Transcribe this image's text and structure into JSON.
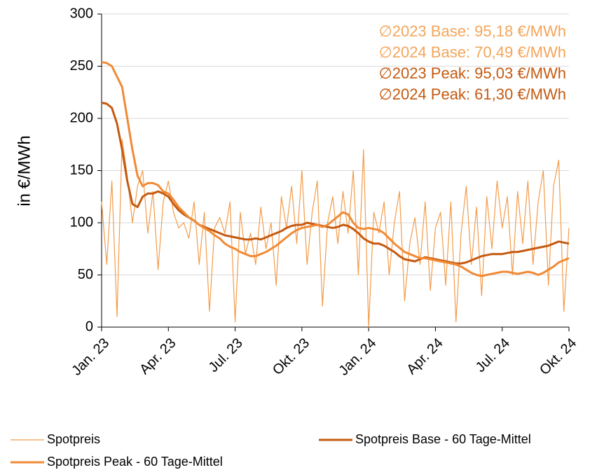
{
  "chart_data": {
    "type": "line",
    "ylabel": "in €/MWh",
    "categories": [
      "Jan. 23",
      null,
      null,
      null,
      null,
      null,
      null,
      null,
      null,
      null,
      null,
      null,
      null,
      "Apr. 23",
      null,
      null,
      null,
      null,
      null,
      null,
      null,
      null,
      null,
      null,
      null,
      null,
      "Jul. 23",
      null,
      null,
      null,
      null,
      null,
      null,
      null,
      null,
      null,
      null,
      null,
      null,
      "Okt. 23",
      null,
      null,
      null,
      null,
      null,
      null,
      null,
      null,
      null,
      null,
      null,
      null,
      "Jan. 24",
      null,
      null,
      null,
      null,
      null,
      null,
      null,
      null,
      null,
      null,
      null,
      null,
      "Apr. 24",
      null,
      null,
      null,
      null,
      null,
      null,
      null,
      null,
      null,
      null,
      null,
      null,
      "Jul. 24",
      null,
      null,
      null,
      null,
      null,
      null,
      null,
      null,
      null,
      null,
      null,
      null,
      "Okt. 24"
    ],
    "series": [
      {
        "name": "Spotpreis",
        "color": "#f39c4a",
        "width": 1.2,
        "values": [
          120,
          60,
          140,
          10,
          180,
          145,
          100,
          135,
          150,
          90,
          130,
          55,
          120,
          140,
          110,
          95,
          100,
          85,
          120,
          60,
          110,
          15,
          95,
          105,
          90,
          120,
          5,
          110,
          70,
          90,
          60,
          115,
          75,
          100,
          40,
          125,
          95,
          135,
          80,
          150,
          60,
          110,
          140,
          20,
          100,
          125,
          80,
          130,
          90,
          150,
          50,
          170,
          0,
          110,
          90,
          120,
          50,
          100,
          130,
          25,
          80,
          105,
          60,
          120,
          35,
          95,
          110,
          40,
          120,
          5,
          90,
          135,
          60,
          115,
          30,
          125,
          75,
          140,
          95,
          125,
          50,
          130,
          80,
          140,
          60,
          120,
          150,
          40,
          135,
          160,
          15,
          95
        ]
      },
      {
        "name": "Spotpreis Base - 60 Tage-Mittel",
        "color": "#c55a11",
        "width": 3,
        "values": [
          215,
          214,
          210,
          195,
          170,
          140,
          118,
          115,
          125,
          128,
          128,
          130,
          128,
          125,
          118,
          112,
          108,
          105,
          102,
          98,
          96,
          94,
          92,
          90,
          88,
          87,
          86,
          85,
          84,
          84,
          85,
          84,
          86,
          88,
          90,
          92,
          95,
          97,
          98,
          98,
          100,
          99,
          98,
          97,
          96,
          95,
          96,
          98,
          97,
          94,
          90,
          85,
          82,
          80,
          80,
          78,
          75,
          72,
          68,
          65,
          64,
          63,
          65,
          67,
          66,
          65,
          64,
          63,
          62,
          61,
          61,
          62,
          64,
          66,
          68,
          69,
          70,
          70,
          70,
          71,
          72,
          72,
          73,
          74,
          75,
          76,
          77,
          78,
          80,
          82,
          81,
          80
        ]
      },
      {
        "name": "Spotpreis Peak - 60 Tage-Mittel",
        "color": "#f08a35",
        "width": 3,
        "values": [
          254,
          253,
          250,
          240,
          230,
          200,
          170,
          145,
          135,
          138,
          138,
          136,
          130,
          128,
          122,
          115,
          110,
          105,
          102,
          98,
          95,
          92,
          88,
          85,
          80,
          77,
          75,
          72,
          70,
          68,
          68,
          70,
          72,
          75,
          78,
          82,
          86,
          90,
          93,
          95,
          96,
          97,
          98,
          96,
          98,
          102,
          106,
          110,
          108,
          100,
          95,
          94,
          95,
          94,
          93,
          90,
          85,
          80,
          76,
          72,
          70,
          68,
          66,
          66,
          65,
          64,
          63,
          62,
          61,
          60,
          58,
          55,
          52,
          50,
          49,
          50,
          51,
          52,
          53,
          53,
          52,
          51,
          52,
          53,
          52,
          50,
          52,
          55,
          58,
          62,
          64,
          66
        ]
      }
    ],
    "ylim": [
      0,
      300
    ],
    "yticks": [
      0,
      50,
      100,
      150,
      200,
      250,
      300
    ],
    "grid": true,
    "annotations": [
      {
        "text": "∅2023 Base: 95,18 €/MWh",
        "color": "#f4a55a"
      },
      {
        "text": "∅2024 Base: 70,49 €/MWh",
        "color": "#f4a55a"
      },
      {
        "text": "∅2023 Peak: 95,03 €/MWh",
        "color": "#c55a11"
      },
      {
        "text": "∅2024 Peak: 61,30 €/MWh",
        "color": "#c55a11"
      }
    ]
  }
}
